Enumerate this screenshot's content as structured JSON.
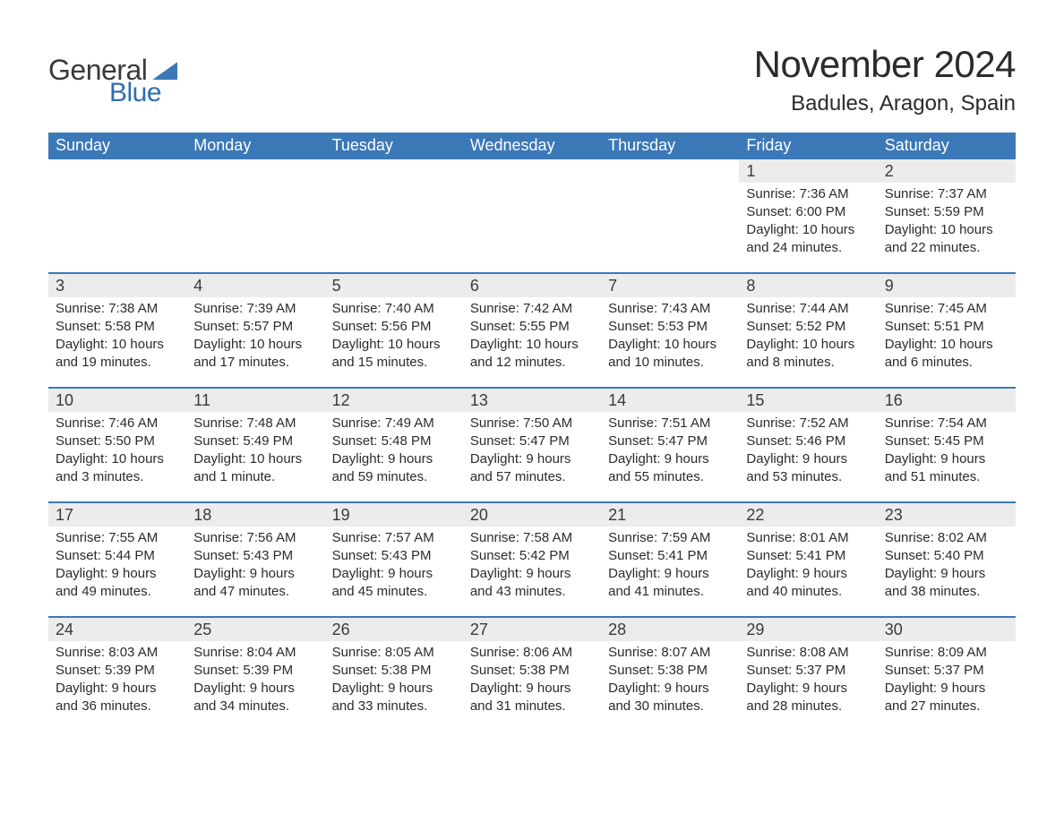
{
  "brand": {
    "name_general": "General",
    "name_blue": "Blue",
    "logo_color": "#3b78b8",
    "text_dark": "#3a3a3a",
    "text_blue": "#2e6eb0"
  },
  "title": "November 2024",
  "location": "Badules, Aragon, Spain",
  "colors": {
    "header_bg": "#3b78b8",
    "header_text": "#ffffff",
    "daynum_bg": "#ececec",
    "daynum_text": "#3a3a3a",
    "body_text": "#2b2b2b",
    "week_border": "#3b78b8",
    "page_bg": "#ffffff"
  },
  "weekdays": [
    "Sunday",
    "Monday",
    "Tuesday",
    "Wednesday",
    "Thursday",
    "Friday",
    "Saturday"
  ],
  "weeks": [
    [
      {
        "empty": true
      },
      {
        "empty": true
      },
      {
        "empty": true
      },
      {
        "empty": true
      },
      {
        "empty": true
      },
      {
        "day": "1",
        "sunrise": "Sunrise: 7:36 AM",
        "sunset": "Sunset: 6:00 PM",
        "daylight": "Daylight: 10 hours and 24 minutes."
      },
      {
        "day": "2",
        "sunrise": "Sunrise: 7:37 AM",
        "sunset": "Sunset: 5:59 PM",
        "daylight": "Daylight: 10 hours and 22 minutes."
      }
    ],
    [
      {
        "day": "3",
        "sunrise": "Sunrise: 7:38 AM",
        "sunset": "Sunset: 5:58 PM",
        "daylight": "Daylight: 10 hours and 19 minutes."
      },
      {
        "day": "4",
        "sunrise": "Sunrise: 7:39 AM",
        "sunset": "Sunset: 5:57 PM",
        "daylight": "Daylight: 10 hours and 17 minutes."
      },
      {
        "day": "5",
        "sunrise": "Sunrise: 7:40 AM",
        "sunset": "Sunset: 5:56 PM",
        "daylight": "Daylight: 10 hours and 15 minutes."
      },
      {
        "day": "6",
        "sunrise": "Sunrise: 7:42 AM",
        "sunset": "Sunset: 5:55 PM",
        "daylight": "Daylight: 10 hours and 12 minutes."
      },
      {
        "day": "7",
        "sunrise": "Sunrise: 7:43 AM",
        "sunset": "Sunset: 5:53 PM",
        "daylight": "Daylight: 10 hours and 10 minutes."
      },
      {
        "day": "8",
        "sunrise": "Sunrise: 7:44 AM",
        "sunset": "Sunset: 5:52 PM",
        "daylight": "Daylight: 10 hours and 8 minutes."
      },
      {
        "day": "9",
        "sunrise": "Sunrise: 7:45 AM",
        "sunset": "Sunset: 5:51 PM",
        "daylight": "Daylight: 10 hours and 6 minutes."
      }
    ],
    [
      {
        "day": "10",
        "sunrise": "Sunrise: 7:46 AM",
        "sunset": "Sunset: 5:50 PM",
        "daylight": "Daylight: 10 hours and 3 minutes."
      },
      {
        "day": "11",
        "sunrise": "Sunrise: 7:48 AM",
        "sunset": "Sunset: 5:49 PM",
        "daylight": "Daylight: 10 hours and 1 minute."
      },
      {
        "day": "12",
        "sunrise": "Sunrise: 7:49 AM",
        "sunset": "Sunset: 5:48 PM",
        "daylight": "Daylight: 9 hours and 59 minutes."
      },
      {
        "day": "13",
        "sunrise": "Sunrise: 7:50 AM",
        "sunset": "Sunset: 5:47 PM",
        "daylight": "Daylight: 9 hours and 57 minutes."
      },
      {
        "day": "14",
        "sunrise": "Sunrise: 7:51 AM",
        "sunset": "Sunset: 5:47 PM",
        "daylight": "Daylight: 9 hours and 55 minutes."
      },
      {
        "day": "15",
        "sunrise": "Sunrise: 7:52 AM",
        "sunset": "Sunset: 5:46 PM",
        "daylight": "Daylight: 9 hours and 53 minutes."
      },
      {
        "day": "16",
        "sunrise": "Sunrise: 7:54 AM",
        "sunset": "Sunset: 5:45 PM",
        "daylight": "Daylight: 9 hours and 51 minutes."
      }
    ],
    [
      {
        "day": "17",
        "sunrise": "Sunrise: 7:55 AM",
        "sunset": "Sunset: 5:44 PM",
        "daylight": "Daylight: 9 hours and 49 minutes."
      },
      {
        "day": "18",
        "sunrise": "Sunrise: 7:56 AM",
        "sunset": "Sunset: 5:43 PM",
        "daylight": "Daylight: 9 hours and 47 minutes."
      },
      {
        "day": "19",
        "sunrise": "Sunrise: 7:57 AM",
        "sunset": "Sunset: 5:43 PM",
        "daylight": "Daylight: 9 hours and 45 minutes."
      },
      {
        "day": "20",
        "sunrise": "Sunrise: 7:58 AM",
        "sunset": "Sunset: 5:42 PM",
        "daylight": "Daylight: 9 hours and 43 minutes."
      },
      {
        "day": "21",
        "sunrise": "Sunrise: 7:59 AM",
        "sunset": "Sunset: 5:41 PM",
        "daylight": "Daylight: 9 hours and 41 minutes."
      },
      {
        "day": "22",
        "sunrise": "Sunrise: 8:01 AM",
        "sunset": "Sunset: 5:41 PM",
        "daylight": "Daylight: 9 hours and 40 minutes."
      },
      {
        "day": "23",
        "sunrise": "Sunrise: 8:02 AM",
        "sunset": "Sunset: 5:40 PM",
        "daylight": "Daylight: 9 hours and 38 minutes."
      }
    ],
    [
      {
        "day": "24",
        "sunrise": "Sunrise: 8:03 AM",
        "sunset": "Sunset: 5:39 PM",
        "daylight": "Daylight: 9 hours and 36 minutes."
      },
      {
        "day": "25",
        "sunrise": "Sunrise: 8:04 AM",
        "sunset": "Sunset: 5:39 PM",
        "daylight": "Daylight: 9 hours and 34 minutes."
      },
      {
        "day": "26",
        "sunrise": "Sunrise: 8:05 AM",
        "sunset": "Sunset: 5:38 PM",
        "daylight": "Daylight: 9 hours and 33 minutes."
      },
      {
        "day": "27",
        "sunrise": "Sunrise: 8:06 AM",
        "sunset": "Sunset: 5:38 PM",
        "daylight": "Daylight: 9 hours and 31 minutes."
      },
      {
        "day": "28",
        "sunrise": "Sunrise: 8:07 AM",
        "sunset": "Sunset: 5:38 PM",
        "daylight": "Daylight: 9 hours and 30 minutes."
      },
      {
        "day": "29",
        "sunrise": "Sunrise: 8:08 AM",
        "sunset": "Sunset: 5:37 PM",
        "daylight": "Daylight: 9 hours and 28 minutes."
      },
      {
        "day": "30",
        "sunrise": "Sunrise: 8:09 AM",
        "sunset": "Sunset: 5:37 PM",
        "daylight": "Daylight: 9 hours and 27 minutes."
      }
    ]
  ]
}
